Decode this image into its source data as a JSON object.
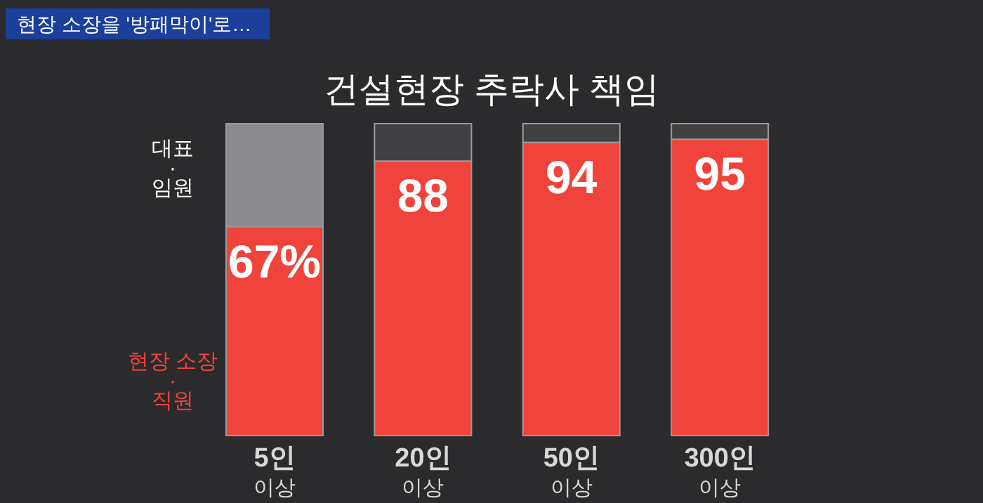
{
  "chart_data": {
    "type": "bar",
    "stacked": true,
    "title": "건설현장 추락사 책임",
    "annotations": [
      "현장 소장을 '방패막이'로…"
    ],
    "categories": [
      "5인\n이상",
      "20인\n이상",
      "50인\n이상",
      "300인\n이상"
    ],
    "series": [
      {
        "name": "현장 소장\n·\n직원",
        "color": "#f0433b",
        "values": [
          67,
          88,
          94,
          95
        ],
        "value_labels": [
          "67%",
          "88",
          "94",
          "95"
        ]
      },
      {
        "name": "대표\n·\n임원",
        "colors": [
          "#8c8c8e",
          "#404042",
          "#404042",
          "#404042"
        ],
        "values": [
          33,
          12,
          6,
          5
        ]
      }
    ],
    "legend": "left"
  }
}
